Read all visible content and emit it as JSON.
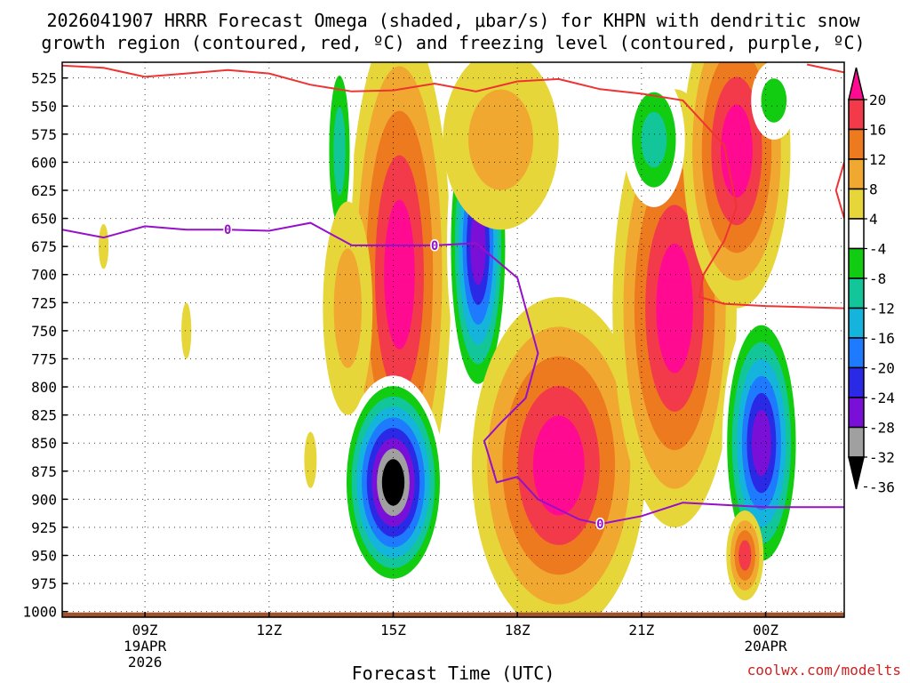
{
  "chart_data": {
    "type": "heatmap",
    "title_line1": "2026041907 HRRR Forecast Omega (shaded, μbar/s) for KHPN with dendritic snow",
    "title_line2": "growth region (contoured, red, ºC) and freezing level (contoured, purple, ºC)",
    "xlabel": "Forecast Time (UTC)",
    "credit": "coolwx.com/modelts",
    "x_range": [
      7,
      25.9
    ],
    "y_range": [
      1005,
      511
    ],
    "y_ticks": [
      525,
      550,
      575,
      600,
      625,
      650,
      675,
      700,
      725,
      750,
      775,
      800,
      825,
      850,
      875,
      900,
      925,
      950,
      975,
      1000
    ],
    "x_ticks": [
      {
        "hour": 9,
        "label": "09Z",
        "date": "19APR",
        "year": "2026"
      },
      {
        "hour": 12,
        "label": "12Z",
        "date": "",
        "year": ""
      },
      {
        "hour": 15,
        "label": "15Z",
        "date": "",
        "year": ""
      },
      {
        "hour": 18,
        "label": "18Z",
        "date": "",
        "year": ""
      },
      {
        "hour": 21,
        "label": "21Z",
        "date": "",
        "year": ""
      },
      {
        "hour": 24,
        "label": "00Z",
        "date": "20APR",
        "year": ""
      }
    ],
    "colorbar": {
      "labels": [
        "20",
        "16",
        "12",
        "8",
        "4",
        "-4",
        "-8",
        "-12",
        "-16",
        "-20",
        "-24",
        "-28",
        "-32",
        "-36"
      ],
      "colors": [
        "#ff0a91",
        "#f23a4a",
        "#ee7a20",
        "#f0a830",
        "#e6d63a",
        "#ffffff",
        "#11cc11",
        "#12c69a",
        "#14b4dc",
        "#1e7aff",
        "#2a2ae6",
        "#7a10d8",
        "#a0a0a0",
        "#000000"
      ]
    },
    "omega_features": [
      {
        "cx": 15.15,
        "cy": 700,
        "rx": 1.25,
        "ry": 225,
        "levels": [
          4,
          8,
          12,
          16,
          20
        ]
      },
      {
        "cx": 17.05,
        "cy": 675,
        "rx": 0.75,
        "ry": 140,
        "levels": [
          -4,
          -8,
          -12,
          -16,
          -20,
          -24,
          -28
        ]
      },
      {
        "cx": 15.0,
        "cy": 885,
        "rx": 1.25,
        "ry": 95,
        "levels": [
          -4,
          -8,
          -12,
          -16,
          -20,
          -24,
          -28,
          -32,
          -36
        ]
      },
      {
        "cx": 19.0,
        "cy": 870,
        "rx": 2.1,
        "ry": 150,
        "levels": [
          4,
          8,
          12,
          16,
          20
        ]
      },
      {
        "cx": 21.8,
        "cy": 730,
        "rx": 1.5,
        "ry": 195,
        "levels": [
          4,
          8,
          12,
          16,
          20
        ]
      },
      {
        "cx": 23.3,
        "cy": 590,
        "rx": 1.3,
        "ry": 140,
        "levels": [
          4,
          8,
          12,
          16,
          20
        ]
      },
      {
        "cx": 23.9,
        "cy": 850,
        "rx": 0.95,
        "ry": 120,
        "levels": [
          -4,
          -8,
          -12,
          -16,
          -20,
          -24,
          -28
        ]
      },
      {
        "cx": 21.3,
        "cy": 580,
        "rx": 0.75,
        "ry": 60,
        "levels": [
          -4,
          -8,
          -12
        ]
      },
      {
        "cx": 24.2,
        "cy": 545,
        "rx": 0.55,
        "ry": 35,
        "levels": [
          -4,
          -8
        ]
      },
      {
        "cx": 13.7,
        "cy": 590,
        "rx": 0.35,
        "ry": 95,
        "levels": [
          -4,
          -8,
          -12
        ]
      },
      {
        "cx": 10.5,
        "cy": 870,
        "rx": 2.6,
        "ry": 65,
        "levels": [
          -4
        ]
      },
      {
        "cx": 8.8,
        "cy": 820,
        "rx": 0.95,
        "ry": 45,
        "levels": [
          -4
        ]
      },
      {
        "cx": 13.9,
        "cy": 730,
        "rx": 0.6,
        "ry": 95,
        "levels": [
          4,
          8
        ]
      },
      {
        "cx": 17.6,
        "cy": 580,
        "rx": 1.4,
        "ry": 80,
        "levels": [
          4,
          8
        ]
      },
      {
        "cx": 23.5,
        "cy": 950,
        "rx": 0.45,
        "ry": 40,
        "levels": [
          4,
          8,
          12,
          16
        ]
      },
      {
        "cx": 8.0,
        "cy": 675,
        "rx": 0.12,
        "ry": 20,
        "levels": [
          4
        ]
      },
      {
        "cx": 10.0,
        "cy": 750,
        "rx": 0.12,
        "ry": 25,
        "levels": [
          4
        ]
      },
      {
        "cx": 13.0,
        "cy": 865,
        "rx": 0.15,
        "ry": 25,
        "levels": [
          4
        ]
      }
    ],
    "freezing_level": {
      "label": "0",
      "label_points": [
        [
          11.0,
          660
        ],
        [
          16.0,
          674
        ],
        [
          20.0,
          922
        ]
      ],
      "points": [
        [
          7,
          660
        ],
        [
          8.0,
          667
        ],
        [
          9.0,
          657
        ],
        [
          10.0,
          660
        ],
        [
          11.0,
          660
        ],
        [
          12.0,
          661
        ],
        [
          13.0,
          654
        ],
        [
          14.0,
          674
        ],
        [
          15.0,
          674
        ],
        [
          16.0,
          674
        ],
        [
          17.0,
          672
        ],
        [
          18.0,
          703
        ],
        [
          18.5,
          770
        ],
        [
          18.2,
          810
        ],
        [
          17.6,
          832
        ],
        [
          17.2,
          848
        ],
        [
          17.5,
          885
        ],
        [
          18.0,
          880
        ],
        [
          18.5,
          900
        ],
        [
          19.5,
          918
        ],
        [
          20.0,
          922
        ],
        [
          21.0,
          915
        ],
        [
          22.0,
          903
        ],
        [
          23.0,
          905
        ],
        [
          24.0,
          907
        ],
        [
          25.9,
          907
        ]
      ]
    },
    "dgz_top": [
      [
        7,
        514
      ],
      [
        8.0,
        516
      ],
      [
        9.0,
        524
      ],
      [
        10.0,
        521
      ],
      [
        11.0,
        518
      ],
      [
        12.0,
        521
      ],
      [
        13.0,
        531
      ],
      [
        14.0,
        537
      ],
      [
        15.0,
        536
      ],
      [
        16.0,
        530
      ],
      [
        17.0,
        537
      ],
      [
        18.0,
        528
      ],
      [
        19.0,
        526
      ],
      [
        20.0,
        535
      ],
      [
        21.0,
        539
      ],
      [
        22.0,
        545
      ],
      [
        23.0,
        585
      ],
      [
        23.3,
        640
      ],
      [
        23.0,
        670
      ],
      [
        22.5,
        700
      ],
      [
        22.4,
        720
      ],
      [
        23.0,
        726
      ],
      [
        24.0,
        728
      ],
      [
        25.9,
        730
      ]
    ],
    "dgz_right": [
      [
        25.9,
        520
      ],
      [
        25.0,
        513
      ]
    ],
    "dgz_right2": [
      [
        25.9,
        600
      ],
      [
        25.7,
        625
      ],
      [
        25.9,
        650
      ]
    ]
  }
}
